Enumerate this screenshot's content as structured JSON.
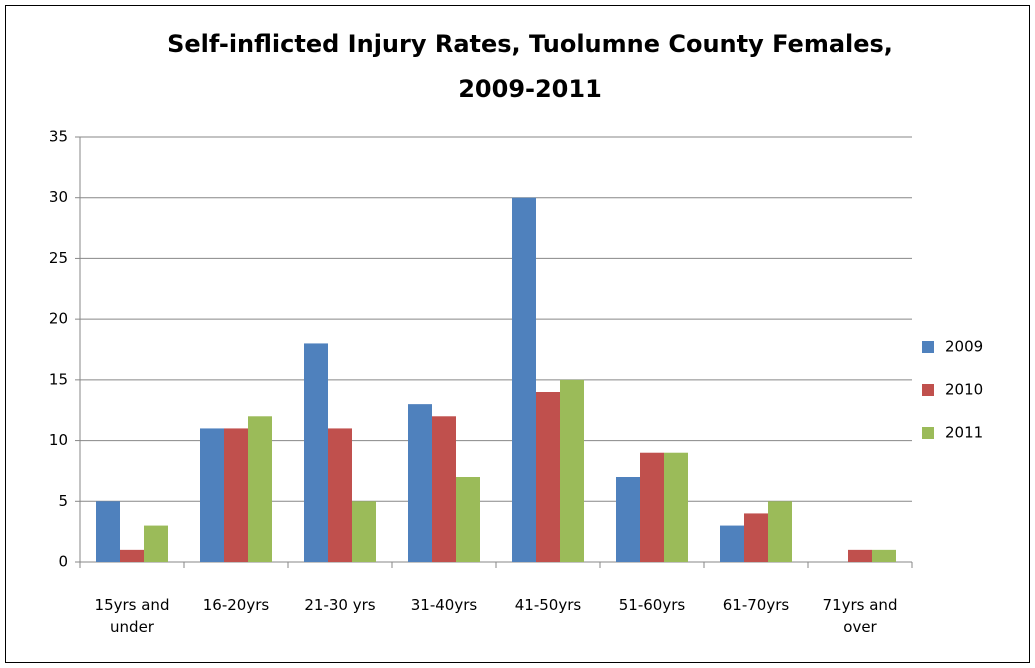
{
  "chart_data": {
    "type": "bar",
    "title": "Self-inflicted Injury Rates, Tuolumne County Females, 2009-2011",
    "categories": [
      "15yrs and under",
      "16-20yrs",
      "21-30 yrs",
      "31-40yrs",
      "41-50yrs",
      "51-60yrs",
      "61-70yrs",
      "71yrs and over"
    ],
    "series": [
      {
        "name": "2009",
        "color": "#4f81bd",
        "values": [
          5,
          11,
          18,
          13,
          30,
          7,
          3,
          0
        ]
      },
      {
        "name": "2010",
        "color": "#c0504d",
        "values": [
          1,
          11,
          11,
          12,
          14,
          9,
          4,
          1
        ]
      },
      {
        "name": "2011",
        "color": "#9bbb59",
        "values": [
          3,
          12,
          5,
          7,
          15,
          9,
          5,
          1
        ]
      }
    ],
    "ylim": [
      0,
      35
    ],
    "yticks": [
      0,
      5,
      10,
      15,
      20,
      25,
      30,
      35
    ],
    "grid": true,
    "legend": "right"
  }
}
